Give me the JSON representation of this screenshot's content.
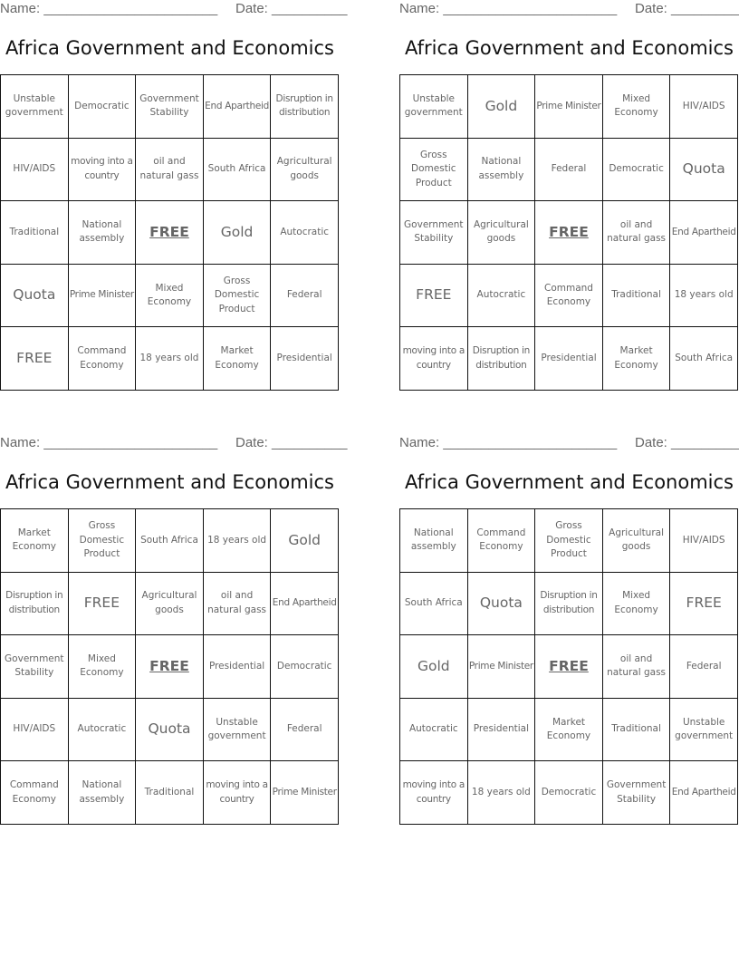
{
  "page": {
    "name_label": "Name: _______________________",
    "date_label": "Date: __________",
    "title": "Africa Government and Economics"
  },
  "cards": [
    {
      "rows": [
        [
          "Unstable government",
          "Democratic",
          "Government Stability",
          "End Apartheid",
          "Disruption in distribution"
        ],
        [
          "HIV/AIDS",
          "moving into a country",
          "oil and natural gass",
          "South Africa",
          "Agricultural goods"
        ],
        [
          "Traditional",
          "National assembly",
          "FREE",
          "Gold",
          "Autocratic"
        ],
        [
          "Quota",
          "Prime Minister",
          "Mixed Economy",
          "Gross Domestic Product",
          "Federal"
        ],
        [
          "FREE",
          "Command Economy",
          "18 years old",
          "Market Economy",
          "Presidential"
        ]
      ]
    },
    {
      "rows": [
        [
          "Unstable government",
          "Gold",
          "Prime Minister",
          "Mixed Economy",
          "HIV/AIDS"
        ],
        [
          "Gross Domestic Product",
          "National assembly",
          "Federal",
          "Democratic",
          "Quota"
        ],
        [
          "Government Stability",
          "Agricultural goods",
          "FREE",
          "oil and natural gass",
          "End Apartheid"
        ],
        [
          "FREE",
          "Autocratic",
          "Command Economy",
          "Traditional",
          "18 years old"
        ],
        [
          "moving into a country",
          "Disruption in distribution",
          "Presidential",
          "Market Economy",
          "South Africa"
        ]
      ]
    },
    {
      "rows": [
        [
          "Market Economy",
          "Gross Domestic Product",
          "South Africa",
          "18 years old",
          "Gold"
        ],
        [
          "Disruption in distribution",
          "FREE",
          "Agricultural goods",
          "oil and natural gass",
          "End Apartheid"
        ],
        [
          "Government Stability",
          "Mixed Economy",
          "FREE",
          "Presidential",
          "Democratic"
        ],
        [
          "HIV/AIDS",
          "Autocratic",
          "Quota",
          "Unstable government",
          "Federal"
        ],
        [
          "Command Economy",
          "National assembly",
          "Traditional",
          "moving into a country",
          "Prime Minister"
        ]
      ]
    },
    {
      "rows": [
        [
          "National assembly",
          "Command Economy",
          "Gross Domestic Product",
          "Agricultural goods",
          "HIV/AIDS"
        ],
        [
          "South Africa",
          "Quota",
          "Disruption in distribution",
          "Mixed Economy",
          "FREE"
        ],
        [
          "Gold",
          "Prime Minister",
          "FREE",
          "oil and natural gass",
          "Federal"
        ],
        [
          "Autocratic",
          "Presidential",
          "Market Economy",
          "Traditional",
          "Unstable government"
        ],
        [
          "moving into a country",
          "18 years old",
          "Democratic",
          "Government Stability",
          "End Apartheid"
        ]
      ]
    }
  ],
  "colors": {
    "cell_text": "#666666",
    "title_text": "#111111",
    "grid_border": "#111111",
    "header_text": "#666666"
  }
}
